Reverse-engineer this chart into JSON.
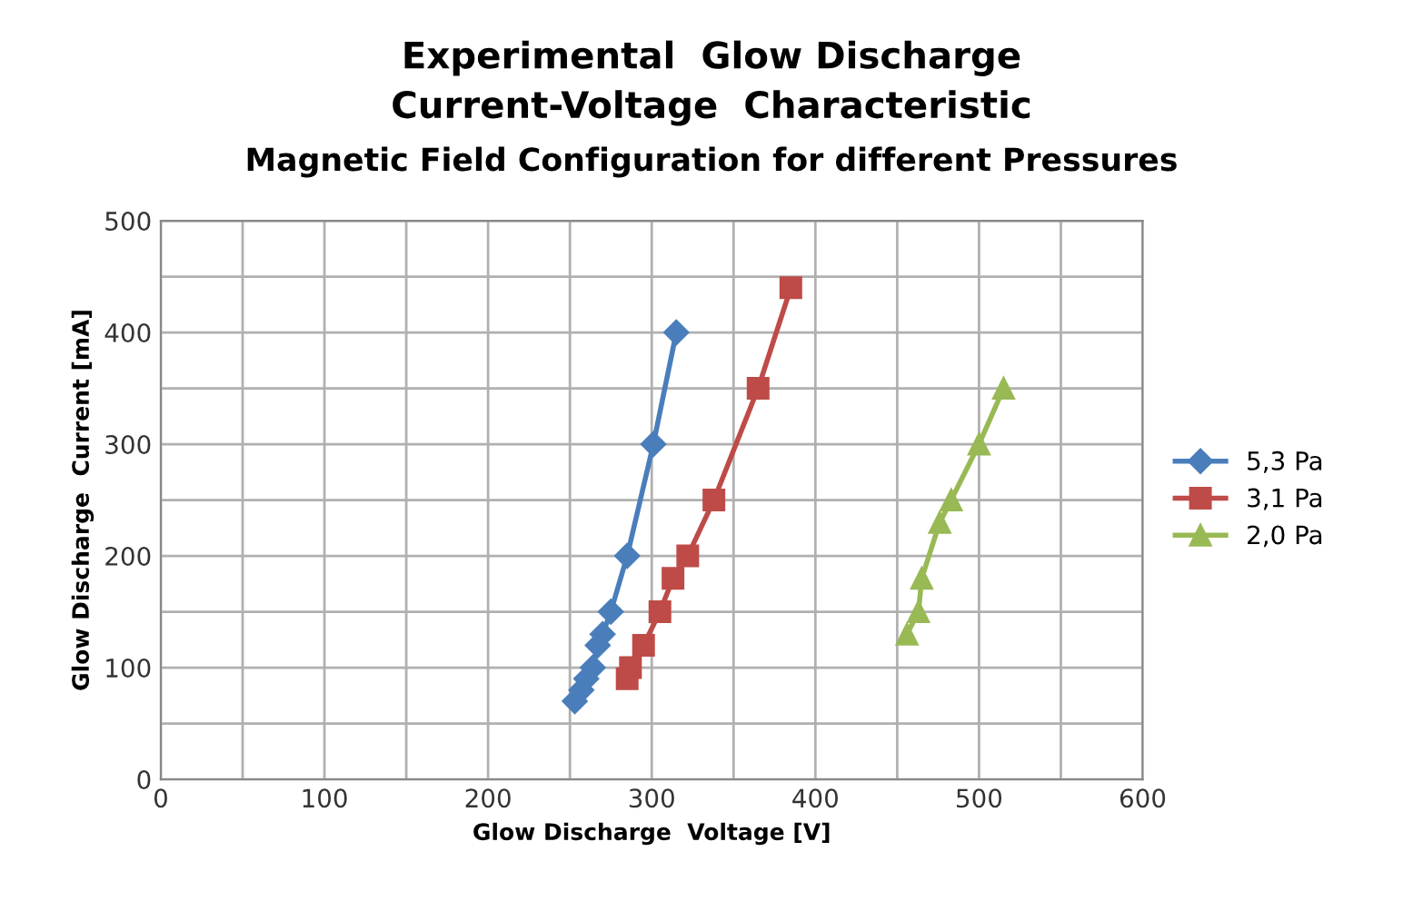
{
  "chart_data": {
    "type": "line",
    "title": "Experimental  Glow Discharge\nCurrent-Voltage  Characteristic",
    "subtitle": "Magnetic Field Configuration for different Pressures",
    "xlabel": "Glow Discharge  Voltage [V]",
    "ylabel": "Glow Discharge  Current [mA]",
    "series": [
      {
        "name": "5,3 Pa",
        "color": "#4a7ebb",
        "marker": "diamond",
        "x": [
          253,
          257,
          260,
          264,
          267,
          270,
          275,
          285,
          301,
          315
        ],
        "values": [
          70,
          80,
          90,
          100,
          120,
          130,
          150,
          200,
          300,
          400
        ]
      },
      {
        "name": "3,1 Pa",
        "color": "#be4b48",
        "marker": "square",
        "x": [
          285,
          287,
          295,
          305,
          313,
          322,
          338,
          365,
          385
        ],
        "values": [
          90,
          100,
          120,
          150,
          180,
          200,
          250,
          350,
          440
        ]
      },
      {
        "name": "2,0 Pa",
        "color": "#98b954",
        "marker": "triangle",
        "x": [
          456,
          463,
          465,
          476,
          483,
          500,
          515
        ],
        "values": [
          130,
          150,
          180,
          230,
          250,
          300,
          350
        ]
      }
    ],
    "xlim": [
      0,
      600
    ],
    "ylim": [
      0,
      500
    ],
    "xticks": [
      0,
      {
        "value": 50,
        "label": null
      },
      100,
      {
        "value": 150,
        "label": null
      },
      200,
      {
        "value": 250,
        "label": null
      },
      300,
      {
        "value": 350,
        "label": null
      },
      400,
      {
        "value": 450,
        "label": null
      },
      500,
      {
        "value": 550,
        "label": null
      },
      600
    ],
    "yticks": [
      0,
      {
        "value": 50,
        "label": null
      },
      100,
      {
        "value": 150,
        "label": null
      },
      200,
      {
        "value": 250,
        "label": null
      },
      300,
      {
        "value": 350,
        "label": null
      },
      400,
      {
        "value": 450,
        "label": null
      },
      500
    ],
    "grid": true,
    "legend": "right"
  }
}
